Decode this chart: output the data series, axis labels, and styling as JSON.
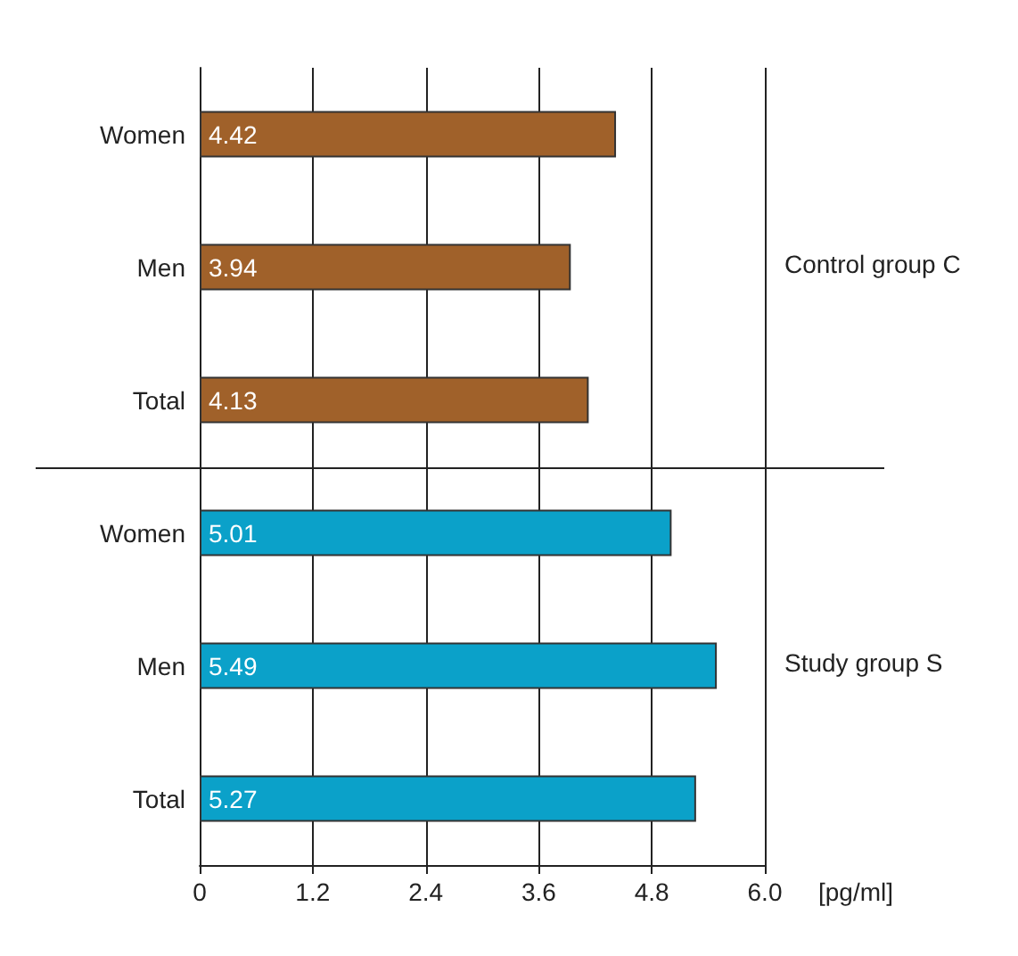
{
  "chart_data": {
    "type": "bar",
    "orientation": "horizontal",
    "categories": [
      "Women",
      "Men",
      "Total",
      "Women",
      "Men",
      "Total"
    ],
    "values": [
      4.42,
      3.94,
      4.13,
      5.01,
      5.49,
      5.27
    ],
    "colors": [
      "#a0612a",
      "#a0612a",
      "#a0612a",
      "#0ba1c9",
      "#0ba1c9",
      "#0ba1c9"
    ],
    "xlabel": "[pg/ml]",
    "xlim": [
      0,
      6
    ],
    "xticks": [
      0,
      {
        "value": 1.2,
        "label": "1.2"
      },
      {
        "value": 2.4,
        "label": "2.4"
      },
      {
        "value": 3.6,
        "label": "3.6"
      },
      {
        "value": 4.8,
        "label": "4.8"
      },
      {
        "value": 6,
        "label": "6.0"
      }
    ],
    "grid": "x",
    "data_labels": true,
    "annotations": [
      "Control group C",
      "Study group S"
    ]
  }
}
